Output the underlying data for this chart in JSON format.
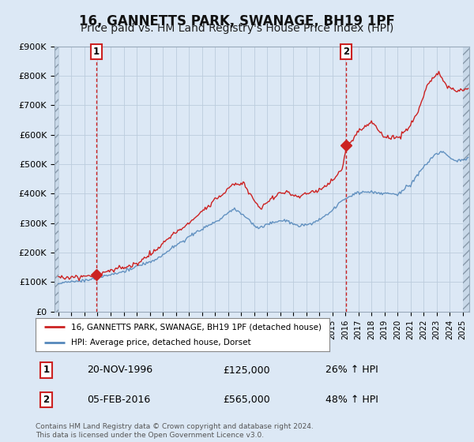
{
  "title": "16, GANNETTS PARK, SWANAGE, BH19 1PF",
  "subtitle": "Price paid vs. HM Land Registry's House Price Index (HPI)",
  "title_fontsize": 12,
  "subtitle_fontsize": 10,
  "ylabel_ticks": [
    "£0",
    "£100K",
    "£200K",
    "£300K",
    "£400K",
    "£500K",
    "£600K",
    "£700K",
    "£800K",
    "£900K"
  ],
  "ytick_vals": [
    0,
    100000,
    200000,
    300000,
    400000,
    500000,
    600000,
    700000,
    800000,
    900000
  ],
  "ylim": [
    0,
    900000
  ],
  "xlim_start": 1993.7,
  "xlim_end": 2025.5,
  "sale1_year": 1996.9,
  "sale1_price": 125000,
  "sale2_year": 2016.08,
  "sale2_price": 565000,
  "sale1_label": "1",
  "sale2_label": "2",
  "sale1_date_str": "20-NOV-1996",
  "sale1_price_str": "£125,000",
  "sale1_hpi_str": "26% ↑ HPI",
  "sale2_date_str": "05-FEB-2016",
  "sale2_price_str": "£565,000",
  "sale2_hpi_str": "48% ↑ HPI",
  "red_line_color": "#cc2222",
  "blue_line_color": "#5588bb",
  "vline_color": "#cc2222",
  "marker_color": "#cc2222",
  "legend1_label": "16, GANNETTS PARK, SWANAGE, BH19 1PF (detached house)",
  "legend2_label": "HPI: Average price, detached house, Dorset",
  "footer_text": "Contains HM Land Registry data © Crown copyright and database right 2024.\nThis data is licensed under the Open Government Licence v3.0.",
  "bg_color": "#dce8f5",
  "plot_bg_color": "#dce8f5",
  "grid_color": "#bbccdd",
  "hatch_color": "#aabbcc",
  "legend_bg": "#ffffff"
}
